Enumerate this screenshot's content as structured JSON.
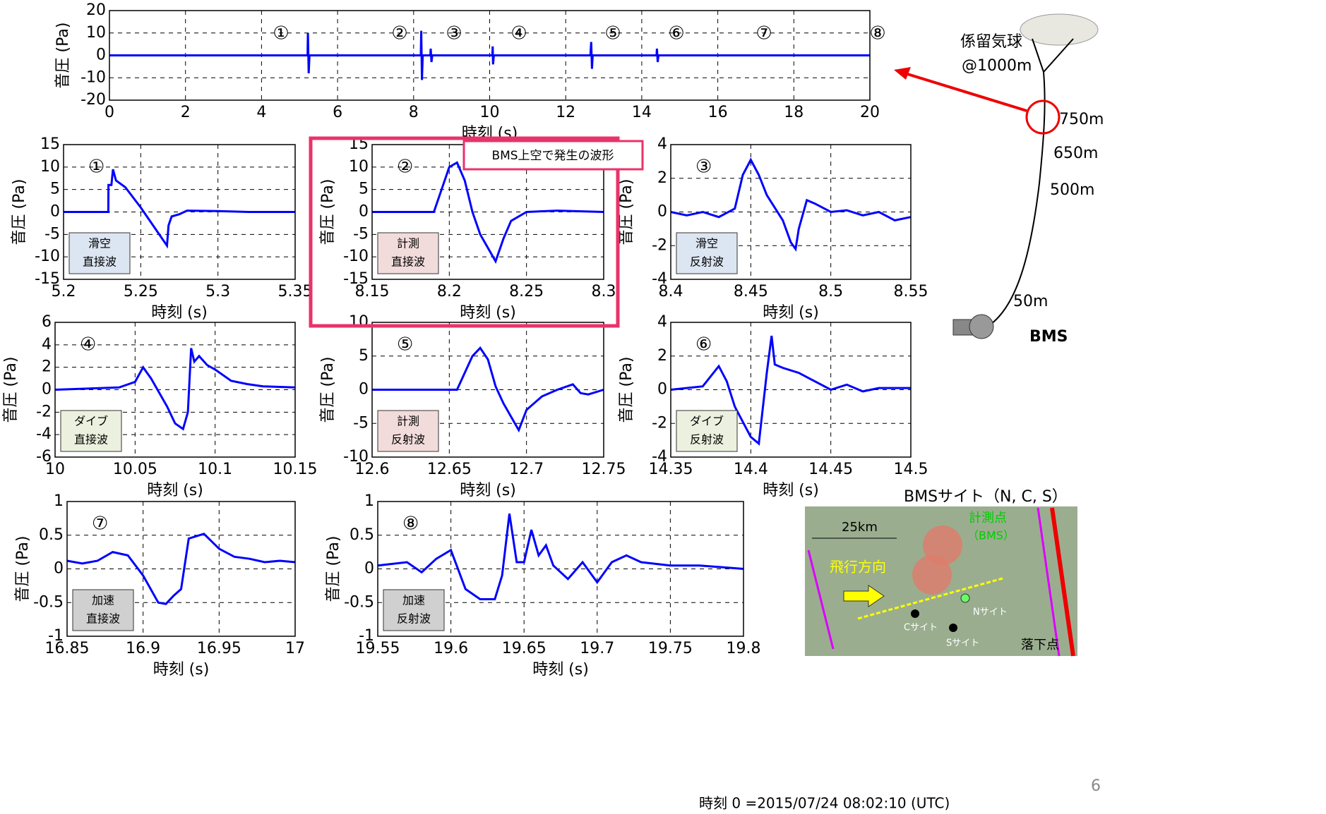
{
  "chart_data": [
    {
      "type": "line",
      "annotations": [
        "①",
        "②",
        "③",
        "④",
        "⑤",
        "⑥",
        "⑦",
        "⑧"
      ],
      "xlabel": "時刻 (s)",
      "ylabel": "音圧 (Pa)",
      "xlim": [
        0,
        20
      ],
      "ylim": [
        -20,
        20
      ],
      "xticks": [
        0,
        2,
        4,
        6,
        8,
        10,
        12,
        14,
        16,
        18,
        20
      ],
      "yticks": [
        -20,
        -10,
        0,
        10,
        20
      ],
      "grid": true,
      "x": [
        0,
        5.21,
        5.22,
        5.24,
        5.26,
        8.19,
        8.2,
        8.22,
        8.24,
        8.44,
        8.45,
        8.47,
        8.49,
        10.07,
        10.08,
        10.09,
        10.11,
        12.65,
        12.67,
        12.69,
        12.71,
        14.39,
        14.4,
        14.42,
        14.44,
        20
      ],
      "series": [
        {
          "color": "#0000ff",
          "values": [
            0,
            0,
            10,
            -8,
            0,
            0,
            11,
            -11,
            0,
            0,
            3,
            -3,
            0,
            0,
            4,
            -4,
            0,
            0,
            6,
            -6,
            0,
            0,
            3,
            -3,
            0,
            0
          ]
        }
      ]
    },
    {
      "type": "line",
      "label": "①",
      "box_label": [
        "滑空",
        "直接波"
      ],
      "box_color": "#dce6f2",
      "xlabel": "時刻 (s)",
      "ylabel": "音圧 (Pa)",
      "xlim": [
        5.2,
        5.35
      ],
      "ylim": [
        -15,
        15
      ],
      "xticks": [
        5.2,
        5.25,
        5.3,
        5.35
      ],
      "yticks": [
        -15,
        -10,
        -5,
        0,
        5,
        10,
        15
      ],
      "grid": true,
      "x": [
        5.2,
        5.229,
        5.2291,
        5.231,
        5.232,
        5.234,
        5.24,
        5.25,
        5.26,
        5.267,
        5.268,
        5.27,
        5.275,
        5.28,
        5.3,
        5.32,
        5.35
      ],
      "series": [
        {
          "color": "#0000ff",
          "values": [
            0,
            0,
            6,
            6,
            9.5,
            7,
            5.5,
            1,
            -4,
            -7.5,
            -3,
            -1,
            -0.5,
            0.3,
            0.2,
            0,
            0
          ]
        }
      ]
    },
    {
      "type": "line",
      "label": "②",
      "box_label": [
        "計測",
        "直接波"
      ],
      "box_color": "#f2dcdb",
      "xlabel": "時刻 (s)",
      "ylabel": "音圧 (Pa)",
      "xlim": [
        8.15,
        8.3
      ],
      "ylim": [
        -15,
        15
      ],
      "xticks": [
        8.15,
        8.2,
        8.25,
        8.3
      ],
      "yticks": [
        -15,
        -10,
        -5,
        0,
        5,
        10,
        15
      ],
      "grid": true,
      "x": [
        8.15,
        8.19,
        8.195,
        8.2,
        8.205,
        8.21,
        8.215,
        8.22,
        8.225,
        8.23,
        8.235,
        8.24,
        8.25,
        8.27,
        8.3
      ],
      "series": [
        {
          "color": "#0000ff",
          "values": [
            0,
            0,
            5,
            10,
            11,
            7,
            0,
            -5,
            -8,
            -11,
            -6,
            -2,
            0,
            0.3,
            0
          ]
        }
      ]
    },
    {
      "type": "line",
      "label": "③",
      "box_label": [
        "滑空",
        "反射波"
      ],
      "box_color": "#dce6f2",
      "xlabel": "時刻 (s)",
      "ylabel": "音圧 (Pa)",
      "xlim": [
        8.4,
        8.55
      ],
      "ylim": [
        -4,
        4
      ],
      "xticks": [
        8.4,
        8.45,
        8.5,
        8.55
      ],
      "yticks": [
        -4,
        -2,
        0,
        2,
        4
      ],
      "grid": true,
      "x": [
        8.4,
        8.41,
        8.42,
        8.43,
        8.44,
        8.445,
        8.45,
        8.455,
        8.46,
        8.47,
        8.475,
        8.478,
        8.48,
        8.485,
        8.49,
        8.5,
        8.51,
        8.52,
        8.53,
        8.54,
        8.55
      ],
      "series": [
        {
          "color": "#0000ff",
          "values": [
            0,
            -0.2,
            0,
            -0.3,
            0.2,
            2.2,
            3.1,
            2.2,
            1,
            -0.5,
            -1.8,
            -2.2,
            -1,
            0.7,
            0.5,
            0,
            0.1,
            -0.2,
            0,
            -0.5,
            -0.3
          ]
        }
      ]
    },
    {
      "type": "line",
      "label": "④",
      "box_label": [
        "ダイブ",
        "直接波"
      ],
      "box_color": "#ebf1de",
      "xlabel": "時刻 (s)",
      "ylabel": "音圧 (Pa)",
      "xlim": [
        10,
        10.15
      ],
      "ylim": [
        -6,
        6
      ],
      "xticks": [
        10,
        10.05,
        10.1,
        10.15
      ],
      "yticks": [
        -6,
        -4,
        -2,
        0,
        2,
        4,
        6
      ],
      "grid": true,
      "x": [
        10,
        10.04,
        10.05,
        10.055,
        10.06,
        10.07,
        10.075,
        10.08,
        10.083,
        10.085,
        10.087,
        10.09,
        10.095,
        10.1,
        10.11,
        10.12,
        10.13,
        10.15
      ],
      "series": [
        {
          "color": "#0000ff",
          "values": [
            0,
            0.2,
            0.7,
            2,
            1,
            -1.5,
            -3,
            -3.5,
            -2,
            3.7,
            2.5,
            3,
            2.2,
            1.8,
            0.8,
            0.5,
            0.3,
            0.2
          ]
        }
      ]
    },
    {
      "type": "line",
      "label": "⑤",
      "box_label": [
        "計測",
        "反射波"
      ],
      "box_color": "#f2dcdb",
      "xlabel": "時刻 (s)",
      "ylabel": "音圧 (Pa)",
      "xlim": [
        12.6,
        12.75
      ],
      "ylim": [
        -10,
        10
      ],
      "xticks": [
        12.6,
        12.65,
        12.7,
        12.75
      ],
      "yticks": [
        -10,
        -5,
        0,
        5,
        10
      ],
      "grid": true,
      "x": [
        12.6,
        12.655,
        12.66,
        12.665,
        12.67,
        12.675,
        12.68,
        12.685,
        12.69,
        12.695,
        12.7,
        12.71,
        12.72,
        12.73,
        12.735,
        12.74,
        12.75
      ],
      "series": [
        {
          "color": "#0000ff",
          "values": [
            0,
            0,
            2.5,
            5,
            6.2,
            4.5,
            0.5,
            -2,
            -4,
            -6,
            -3,
            -1,
            0,
            0.8,
            -0.5,
            -0.7,
            0
          ]
        }
      ]
    },
    {
      "type": "line",
      "label": "⑥",
      "box_label": [
        "ダイブ",
        "反射波"
      ],
      "box_color": "#ebf1de",
      "xlabel": "時刻 (s)",
      "ylabel": "音圧 (Pa)",
      "xlim": [
        14.35,
        14.5
      ],
      "ylim": [
        -4,
        4
      ],
      "xticks": [
        14.35,
        14.4,
        14.45,
        14.5
      ],
      "yticks": [
        -4,
        -2,
        0,
        2,
        4
      ],
      "grid": true,
      "x": [
        14.35,
        14.37,
        14.38,
        14.385,
        14.39,
        14.4,
        14.405,
        14.41,
        14.413,
        14.415,
        14.42,
        14.43,
        14.44,
        14.45,
        14.46,
        14.47,
        14.48,
        14.5
      ],
      "series": [
        {
          "color": "#0000ff",
          "values": [
            0,
            0.2,
            1.4,
            0.5,
            -1,
            -2.8,
            -3.2,
            1,
            3.2,
            1.5,
            1.3,
            1,
            0.5,
            0,
            0.3,
            -0.1,
            0.1,
            0.1
          ]
        }
      ]
    },
    {
      "type": "line",
      "label": "⑦",
      "box_label": [
        "加速",
        "直接波"
      ],
      "box_color": "#d0d0d0",
      "xlabel": "時刻 (s)",
      "ylabel": "音圧 (Pa)",
      "xlim": [
        16.85,
        17
      ],
      "ylim": [
        -1,
        1
      ],
      "xticks": [
        16.85,
        16.9,
        16.95,
        17
      ],
      "yticks": [
        -1,
        -0.5,
        0,
        0.5,
        1
      ],
      "grid": true,
      "x": [
        16.85,
        16.86,
        16.87,
        16.88,
        16.89,
        16.9,
        16.91,
        16.915,
        16.92,
        16.925,
        16.93,
        16.94,
        16.95,
        16.96,
        16.97,
        16.98,
        16.99,
        17
      ],
      "series": [
        {
          "color": "#0000ff",
          "values": [
            0.12,
            0.08,
            0.12,
            0.25,
            0.2,
            -0.1,
            -0.5,
            -0.52,
            -0.4,
            -0.3,
            0.45,
            0.52,
            0.3,
            0.18,
            0.15,
            0.1,
            0.12,
            0.1
          ]
        }
      ]
    },
    {
      "type": "line",
      "label": "⑧",
      "box_label": [
        "加速",
        "反射波"
      ],
      "box_color": "#d0d0d0",
      "xlabel": "時刻 (s)",
      "ylabel": "音圧 (Pa)",
      "xlim": [
        19.55,
        19.8
      ],
      "ylim": [
        -1,
        1
      ],
      "xticks": [
        19.55,
        19.6,
        19.65,
        19.7,
        19.75,
        19.8
      ],
      "yticks": [
        -1,
        -0.5,
        0,
        0.5,
        1
      ],
      "grid": true,
      "x": [
        19.55,
        19.57,
        19.58,
        19.59,
        19.6,
        19.61,
        19.62,
        19.63,
        19.635,
        19.64,
        19.645,
        19.65,
        19.655,
        19.66,
        19.665,
        19.67,
        19.68,
        19.69,
        19.7,
        19.71,
        19.72,
        19.73,
        19.75,
        19.77,
        19.8
      ],
      "series": [
        {
          "color": "#0000ff",
          "values": [
            0.05,
            0.1,
            -0.05,
            0.15,
            0.28,
            -0.3,
            -0.45,
            -0.45,
            -0.1,
            0.82,
            0.1,
            0.1,
            0.58,
            0.2,
            0.35,
            0.05,
            -0.15,
            0.1,
            -0.2,
            0.1,
            0.2,
            0.1,
            0.05,
            0.05,
            0
          ]
        }
      ]
    }
  ],
  "highlight_label": "BMS上空で発生の波形",
  "diagram": {
    "balloon": "係留気球",
    "balloon_alt": "@1000m",
    "heights": [
      "750m",
      "650m",
      "500m",
      "50m"
    ],
    "station": "BMS"
  },
  "map": {
    "title": "BMSサイト（N, C, S）",
    "scale": "25km",
    "point": "計測点",
    "point_sub": "（BMS）",
    "direction": "飛行方向",
    "sites": [
      "Nサイト",
      "Cサイト",
      "Sサイト"
    ],
    "impact": "落下点"
  },
  "footer": "時刻 0 =2015/07/24 08:02:10 (UTC)",
  "page_number": "6"
}
